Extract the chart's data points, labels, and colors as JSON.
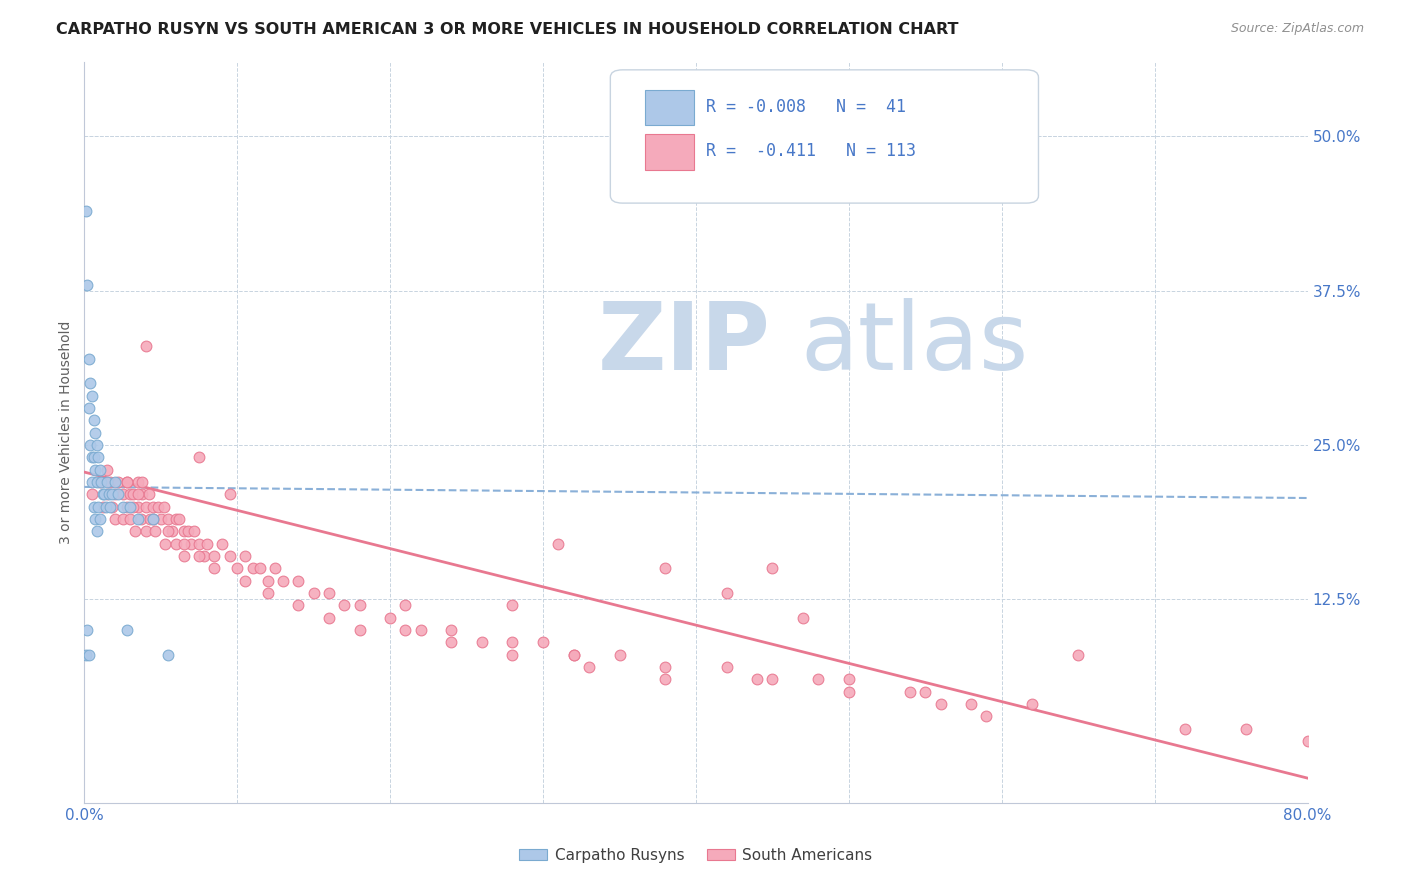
{
  "title": "CARPATHO RUSYN VS SOUTH AMERICAN 3 OR MORE VEHICLES IN HOUSEHOLD CORRELATION CHART",
  "source": "Source: ZipAtlas.com",
  "ylabel": "3 or more Vehicles in Household",
  "right_yticks": [
    "50.0%",
    "37.5%",
    "25.0%",
    "12.5%"
  ],
  "right_ytick_vals": [
    0.5,
    0.375,
    0.25,
    0.125
  ],
  "xlim": [
    0.0,
    0.8
  ],
  "ylim": [
    -0.04,
    0.56
  ],
  "color_blue": "#adc8e8",
  "color_pink": "#f5aabb",
  "color_blue_edge": "#7aaad0",
  "color_pink_edge": "#e87890",
  "color_blue_line": "#8ab0d8",
  "color_pink_line": "#e87890",
  "color_blue_text": "#4878c8",
  "watermark_zip": "#c8d8ea",
  "watermark_atlas": "#c8d8ea",
  "blue_x": [
    0.001,
    0.001,
    0.002,
    0.002,
    0.003,
    0.003,
    0.003,
    0.004,
    0.004,
    0.005,
    0.005,
    0.005,
    0.006,
    0.006,
    0.006,
    0.007,
    0.007,
    0.007,
    0.008,
    0.008,
    0.008,
    0.009,
    0.009,
    0.01,
    0.01,
    0.011,
    0.012,
    0.013,
    0.014,
    0.015,
    0.016,
    0.017,
    0.018,
    0.02,
    0.022,
    0.025,
    0.028,
    0.03,
    0.035,
    0.045,
    0.055
  ],
  "blue_y": [
    0.44,
    0.08,
    0.38,
    0.1,
    0.32,
    0.28,
    0.08,
    0.3,
    0.25,
    0.29,
    0.24,
    0.22,
    0.27,
    0.24,
    0.2,
    0.26,
    0.23,
    0.19,
    0.25,
    0.22,
    0.18,
    0.24,
    0.2,
    0.23,
    0.19,
    0.22,
    0.21,
    0.21,
    0.2,
    0.22,
    0.21,
    0.2,
    0.21,
    0.22,
    0.21,
    0.2,
    0.1,
    0.2,
    0.19,
    0.19,
    0.08
  ],
  "pink_x": [
    0.005,
    0.01,
    0.012,
    0.015,
    0.015,
    0.017,
    0.018,
    0.02,
    0.02,
    0.022,
    0.025,
    0.025,
    0.028,
    0.028,
    0.03,
    0.03,
    0.032,
    0.033,
    0.035,
    0.035,
    0.037,
    0.038,
    0.04,
    0.04,
    0.042,
    0.043,
    0.045,
    0.046,
    0.048,
    0.05,
    0.052,
    0.053,
    0.055,
    0.057,
    0.06,
    0.06,
    0.062,
    0.065,
    0.065,
    0.068,
    0.07,
    0.072,
    0.075,
    0.078,
    0.08,
    0.085,
    0.09,
    0.095,
    0.1,
    0.105,
    0.11,
    0.115,
    0.12,
    0.125,
    0.13,
    0.14,
    0.15,
    0.16,
    0.17,
    0.18,
    0.2,
    0.21,
    0.22,
    0.24,
    0.26,
    0.28,
    0.3,
    0.32,
    0.35,
    0.38,
    0.42,
    0.45,
    0.48,
    0.5,
    0.54,
    0.58,
    0.62,
    0.04,
    0.075,
    0.095,
    0.038,
    0.035,
    0.032,
    0.028,
    0.045,
    0.055,
    0.065,
    0.075,
    0.085,
    0.105,
    0.12,
    0.14,
    0.16,
    0.18,
    0.21,
    0.24,
    0.28,
    0.33,
    0.38,
    0.44,
    0.5,
    0.56,
    0.31,
    0.45,
    0.32,
    0.59,
    0.72,
    0.76,
    0.8,
    0.65,
    0.38,
    0.42,
    0.47,
    0.28,
    0.55
  ],
  "pink_y": [
    0.21,
    0.22,
    0.2,
    0.23,
    0.21,
    0.22,
    0.2,
    0.21,
    0.19,
    0.22,
    0.21,
    0.19,
    0.22,
    0.2,
    0.21,
    0.19,
    0.21,
    0.18,
    0.22,
    0.2,
    0.19,
    0.21,
    0.2,
    0.18,
    0.21,
    0.19,
    0.2,
    0.18,
    0.2,
    0.19,
    0.2,
    0.17,
    0.19,
    0.18,
    0.19,
    0.17,
    0.19,
    0.18,
    0.16,
    0.18,
    0.17,
    0.18,
    0.17,
    0.16,
    0.17,
    0.16,
    0.17,
    0.16,
    0.15,
    0.16,
    0.15,
    0.15,
    0.14,
    0.15,
    0.14,
    0.14,
    0.13,
    0.13,
    0.12,
    0.12,
    0.11,
    0.12,
    0.1,
    0.1,
    0.09,
    0.09,
    0.09,
    0.08,
    0.08,
    0.07,
    0.07,
    0.06,
    0.06,
    0.06,
    0.05,
    0.04,
    0.04,
    0.33,
    0.24,
    0.21,
    0.22,
    0.21,
    0.2,
    0.22,
    0.19,
    0.18,
    0.17,
    0.16,
    0.15,
    0.14,
    0.13,
    0.12,
    0.11,
    0.1,
    0.1,
    0.09,
    0.08,
    0.07,
    0.06,
    0.06,
    0.05,
    0.04,
    0.17,
    0.15,
    0.08,
    0.03,
    0.02,
    0.02,
    0.01,
    0.08,
    0.15,
    0.13,
    0.11,
    0.12,
    0.05
  ],
  "blue_line_x": [
    0.0,
    0.8
  ],
  "blue_line_y": [
    0.216,
    0.207
  ],
  "pink_line_x": [
    0.0,
    0.8
  ],
  "pink_line_y": [
    0.228,
    -0.02
  ]
}
